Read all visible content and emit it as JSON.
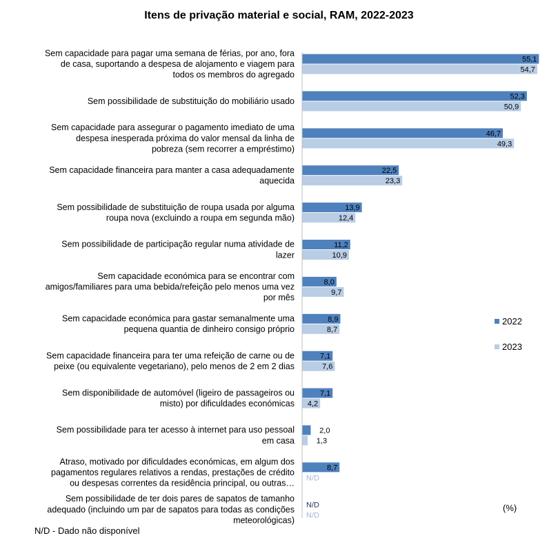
{
  "chart_data": {
    "type": "bar",
    "orientation": "horizontal",
    "title": "Itens de privação material e social, RAM, 2022-2023",
    "unit": "(%)",
    "footnote": "N/D - Dado não disponível",
    "na_label": "N/D",
    "xlim": [
      0,
      56
    ],
    "colors": {
      "2022": "#4f81bd",
      "2023": "#b9cde5",
      "na_text": "#9fb8d8"
    },
    "categories": [
      [
        "Sem capacidade para pagar uma semana de férias, por ano, fora",
        "de casa, suportando a despesa de alojamento e viagem para",
        "todos os membros do agregado"
      ],
      [
        "Sem possibilidade de substituição do mobiliário usado"
      ],
      [
        "Sem capacidade para assegurar o pagamento imediato de uma",
        "despesa inesperada próxima do valor mensal da linha de",
        "pobreza (sem recorrer a empréstimo)"
      ],
      [
        "Sem capacidade financeira para manter a casa adequadamente",
        "aquecida"
      ],
      [
        "Sem possibilidade de substituição de roupa usada por alguma",
        "roupa nova (excluindo a roupa em segunda mão)"
      ],
      [
        "Sem possibilidade de participação regular numa atividade de",
        "lazer"
      ],
      [
        "Sem capacidade económica para se encontrar com",
        "amigos/familiares para uma bebida/refeição pelo menos uma vez",
        "por mês"
      ],
      [
        "Sem capacidade económica para gastar semanalmente uma",
        "pequena quantia de dinheiro consigo próprio"
      ],
      [
        "Sem capacidade financeira para ter uma refeição de carne ou de",
        "peixe (ou equivalente vegetariano), pelo menos de 2 em 2 dias"
      ],
      [
        "Sem disponibilidade de automóvel (ligeiro de passageiros ou",
        "misto) por dificuldades económicas"
      ],
      [
        "Sem possibilidade para ter acesso à internet para uso pessoal",
        "em casa"
      ],
      [
        "Atraso, motivado por dificuldades económicas, em algum dos",
        "pagamentos regulares relativos a rendas, prestações de crédito",
        "ou despesas correntes da residência principal, ou outras…"
      ],
      [
        "Sem possibilidade de ter dois pares de sapatos de tamanho",
        "adequado (incluindo um par de sapatos para todas as condições",
        "meteorológicas)"
      ]
    ],
    "series": [
      {
        "name": "2022",
        "values": [
          55.1,
          52.3,
          46.7,
          22.5,
          13.9,
          11.2,
          8.0,
          8.9,
          7.1,
          7.1,
          2.0,
          8.7,
          null
        ],
        "labels": [
          "55,1",
          "52,3",
          "46,7",
          "22,5",
          "13,9",
          "11,2",
          "8,0",
          "8,9",
          "7,1",
          "7,1",
          "2,0",
          "8,7",
          "N/D"
        ]
      },
      {
        "name": "2023",
        "values": [
          54.7,
          50.9,
          49.3,
          23.3,
          12.4,
          10.9,
          9.7,
          8.7,
          7.6,
          4.2,
          1.3,
          null,
          null
        ],
        "labels": [
          "54,7",
          "50,9",
          "49,3",
          "23,3",
          "12,4",
          "10,9",
          "9,7",
          "8,7",
          "7,6",
          "4,2",
          "1,3",
          "N/D",
          "N/D"
        ]
      }
    ]
  }
}
